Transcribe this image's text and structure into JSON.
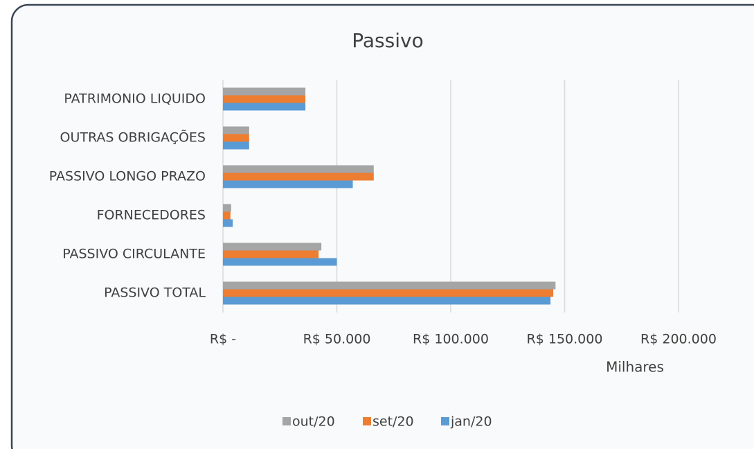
{
  "chart_data": {
    "type": "bar",
    "orientation": "horizontal",
    "title": "Passivo",
    "x_axis_label": "Milhares",
    "categories": [
      "PASSIVO TOTAL",
      "PASSIVO CIRCULANTE",
      "FORNECEDORES",
      "PASSIVO LONGO PRAZO",
      "OUTRAS OBRIGAÇÕES",
      "PATRIMONIO LIQUIDO"
    ],
    "series": [
      {
        "name": "out/20",
        "color": "#a5a5a5",
        "values": [
          146000,
          43200,
          3600,
          66200,
          11500,
          36200
        ]
      },
      {
        "name": "set/20",
        "color": "#ed7d31",
        "values": [
          145000,
          42000,
          3300,
          66200,
          11500,
          36200
        ]
      },
      {
        "name": "jan/20",
        "color": "#5b9bd5",
        "values": [
          143800,
          50000,
          4300,
          57000,
          11500,
          36200
        ]
      }
    ],
    "xlim": [
      0,
      200000
    ],
    "xticks": [
      {
        "value": 0,
        "label": "R$ -"
      },
      {
        "value": 50000,
        "label": "R$ 50.000"
      },
      {
        "value": 100000,
        "label": "R$ 100.000"
      },
      {
        "value": 150000,
        "label": "R$ 150.000"
      },
      {
        "value": 200000,
        "label": "R$ 200.000"
      }
    ],
    "grid": true,
    "legend": "bottom"
  }
}
